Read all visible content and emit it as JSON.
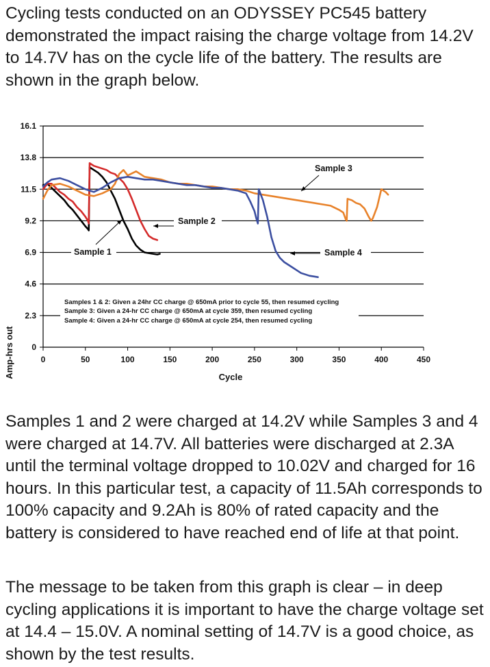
{
  "paragraphs": {
    "intro": "Cycling tests conducted on an ODYSSEY PC545 battery demonstrated the impact raising the charge voltage from 14.2V to 14.7V has on the cycle life of the battery. The results are shown in the graph below.",
    "method": "Samples 1 and 2 were charged at 14.2V while Samples 3 and 4 were charged at 14.7V. All batteries were discharged at 2.3A until the terminal voltage dropped to 10.02V and charged for 16 hours. In this particular test, a capacity of 11.5Ah corresponds to 100% capacity and 9.2Ah is 80% of rated capacity and the battery is considered to have reached end of life at that point.",
    "conclusion": "The message to be taken from this graph is clear – in deep cycling applications it is important to have the charge voltage set at 14.4 – 15.0V. A nominal setting of 14.7V is a good choice, as shown by the test results."
  },
  "chart_data": {
    "type": "line",
    "xlabel": "Cycle",
    "ylabel": "Amp-hrs out",
    "xlim": [
      0,
      450
    ],
    "ylim": [
      0,
      16.1
    ],
    "x_ticks": [
      "0",
      "50",
      "100",
      "150",
      "200",
      "250",
      "300",
      "350",
      "400",
      "450"
    ],
    "y_ticks": [
      "0",
      "2.3",
      "4.6",
      "6.9",
      "9.2",
      "11.5",
      "13.8",
      "16.1"
    ],
    "grid": "horizontal",
    "notes": [
      "Samples 1 & 2: Given a 24hr CC charge @ 650mA prior to cycle 55, then resumed cycling",
      "Sample 3: Given a 24-hr CC charge @ 650mA at cycle 359, then resumed cycling",
      "Sample 4: Given a 24-hr CC charge @ 650mA at cycle 254, then resumed cycling"
    ],
    "series": [
      {
        "name": "Sample 1",
        "color": "#000000",
        "x": [
          0,
          5,
          10,
          15,
          20,
          25,
          30,
          35,
          40,
          45,
          50,
          53,
          54,
          55,
          60,
          65,
          70,
          75,
          80,
          85,
          90,
          95,
          100,
          105,
          110,
          115,
          120,
          125,
          130,
          135,
          138
        ],
        "y": [
          11.8,
          11.9,
          11.6,
          11.3,
          11.0,
          10.7,
          10.3,
          10.0,
          9.6,
          9.2,
          8.8,
          8.6,
          8.5,
          13.1,
          12.9,
          12.7,
          12.4,
          12.0,
          11.4,
          10.8,
          10.0,
          9.2,
          8.6,
          7.9,
          7.4,
          7.1,
          6.9,
          6.85,
          6.8,
          6.75,
          6.8
        ]
      },
      {
        "name": "Sample 2",
        "color": "#d42a2a",
        "x": [
          0,
          5,
          10,
          15,
          20,
          25,
          30,
          35,
          40,
          45,
          50,
          53,
          54,
          55,
          60,
          65,
          70,
          75,
          80,
          85,
          90,
          95,
          100,
          105,
          110,
          115,
          120,
          125,
          130,
          135
        ],
        "y": [
          11.5,
          11.9,
          11.9,
          11.6,
          11.3,
          11.1,
          10.8,
          10.6,
          10.2,
          9.9,
          9.5,
          9.2,
          9.0,
          13.4,
          13.2,
          13.1,
          13.0,
          12.9,
          12.7,
          12.6,
          12.3,
          12.0,
          11.5,
          10.8,
          10.0,
          9.2,
          8.6,
          8.1,
          7.9,
          7.8
        ]
      },
      {
        "name": "Sample 3",
        "color": "#e8822a",
        "x": [
          0,
          5,
          10,
          20,
          30,
          40,
          50,
          60,
          70,
          80,
          85,
          90,
          95,
          100,
          110,
          120,
          130,
          140,
          150,
          160,
          170,
          180,
          190,
          200,
          210,
          220,
          230,
          240,
          250,
          260,
          270,
          280,
          290,
          300,
          310,
          320,
          330,
          340,
          350,
          355,
          358,
          359,
          360,
          365,
          370,
          375,
          380,
          385,
          388,
          390,
          395,
          400,
          405,
          408
        ],
        "y": [
          10.8,
          11.4,
          11.8,
          11.9,
          11.7,
          11.4,
          11.1,
          11.0,
          11.2,
          11.5,
          11.9,
          12.6,
          12.9,
          12.5,
          12.8,
          12.4,
          12.3,
          12.2,
          12.0,
          11.9,
          11.9,
          11.8,
          11.7,
          11.7,
          11.6,
          11.5,
          11.5,
          11.4,
          11.2,
          11.1,
          11.0,
          10.9,
          10.8,
          10.7,
          10.6,
          10.5,
          10.4,
          10.3,
          10.0,
          9.8,
          9.3,
          9.2,
          10.8,
          10.7,
          10.5,
          10.4,
          10.1,
          9.5,
          9.2,
          9.4,
          10.2,
          11.5,
          11.3,
          11.1
        ]
      },
      {
        "name": "Sample 4",
        "color": "#3b4ea0",
        "x": [
          0,
          5,
          10,
          20,
          30,
          40,
          50,
          60,
          70,
          80,
          90,
          100,
          110,
          120,
          130,
          140,
          150,
          160,
          170,
          180,
          190,
          200,
          210,
          220,
          230,
          240,
          245,
          250,
          252,
          254,
          255,
          260,
          265,
          270,
          275,
          280,
          285,
          290,
          295,
          300,
          305,
          310,
          315,
          320,
          325
        ],
        "y": [
          11.7,
          12.0,
          12.2,
          12.3,
          12.1,
          11.8,
          11.5,
          11.3,
          11.6,
          12.0,
          12.3,
          12.4,
          12.3,
          12.2,
          12.2,
          12.1,
          12.0,
          11.9,
          11.8,
          11.8,
          11.7,
          11.6,
          11.6,
          11.5,
          11.4,
          11.2,
          10.6,
          9.9,
          9.4,
          9.0,
          11.5,
          10.7,
          9.5,
          8.0,
          7.0,
          6.5,
          6.2,
          6.0,
          5.8,
          5.6,
          5.4,
          5.3,
          5.2,
          5.15,
          5.1
        ]
      }
    ],
    "annotations": [
      {
        "text": "Sample 1",
        "x": 55,
        "y": 6.9
      },
      {
        "text": "Sample 2",
        "x": 160,
        "y": 9.3
      },
      {
        "text": "Sample 3",
        "x": 345,
        "y": 13.1
      },
      {
        "text": "Sample 4",
        "x": 357,
        "y": 6.9
      }
    ]
  }
}
